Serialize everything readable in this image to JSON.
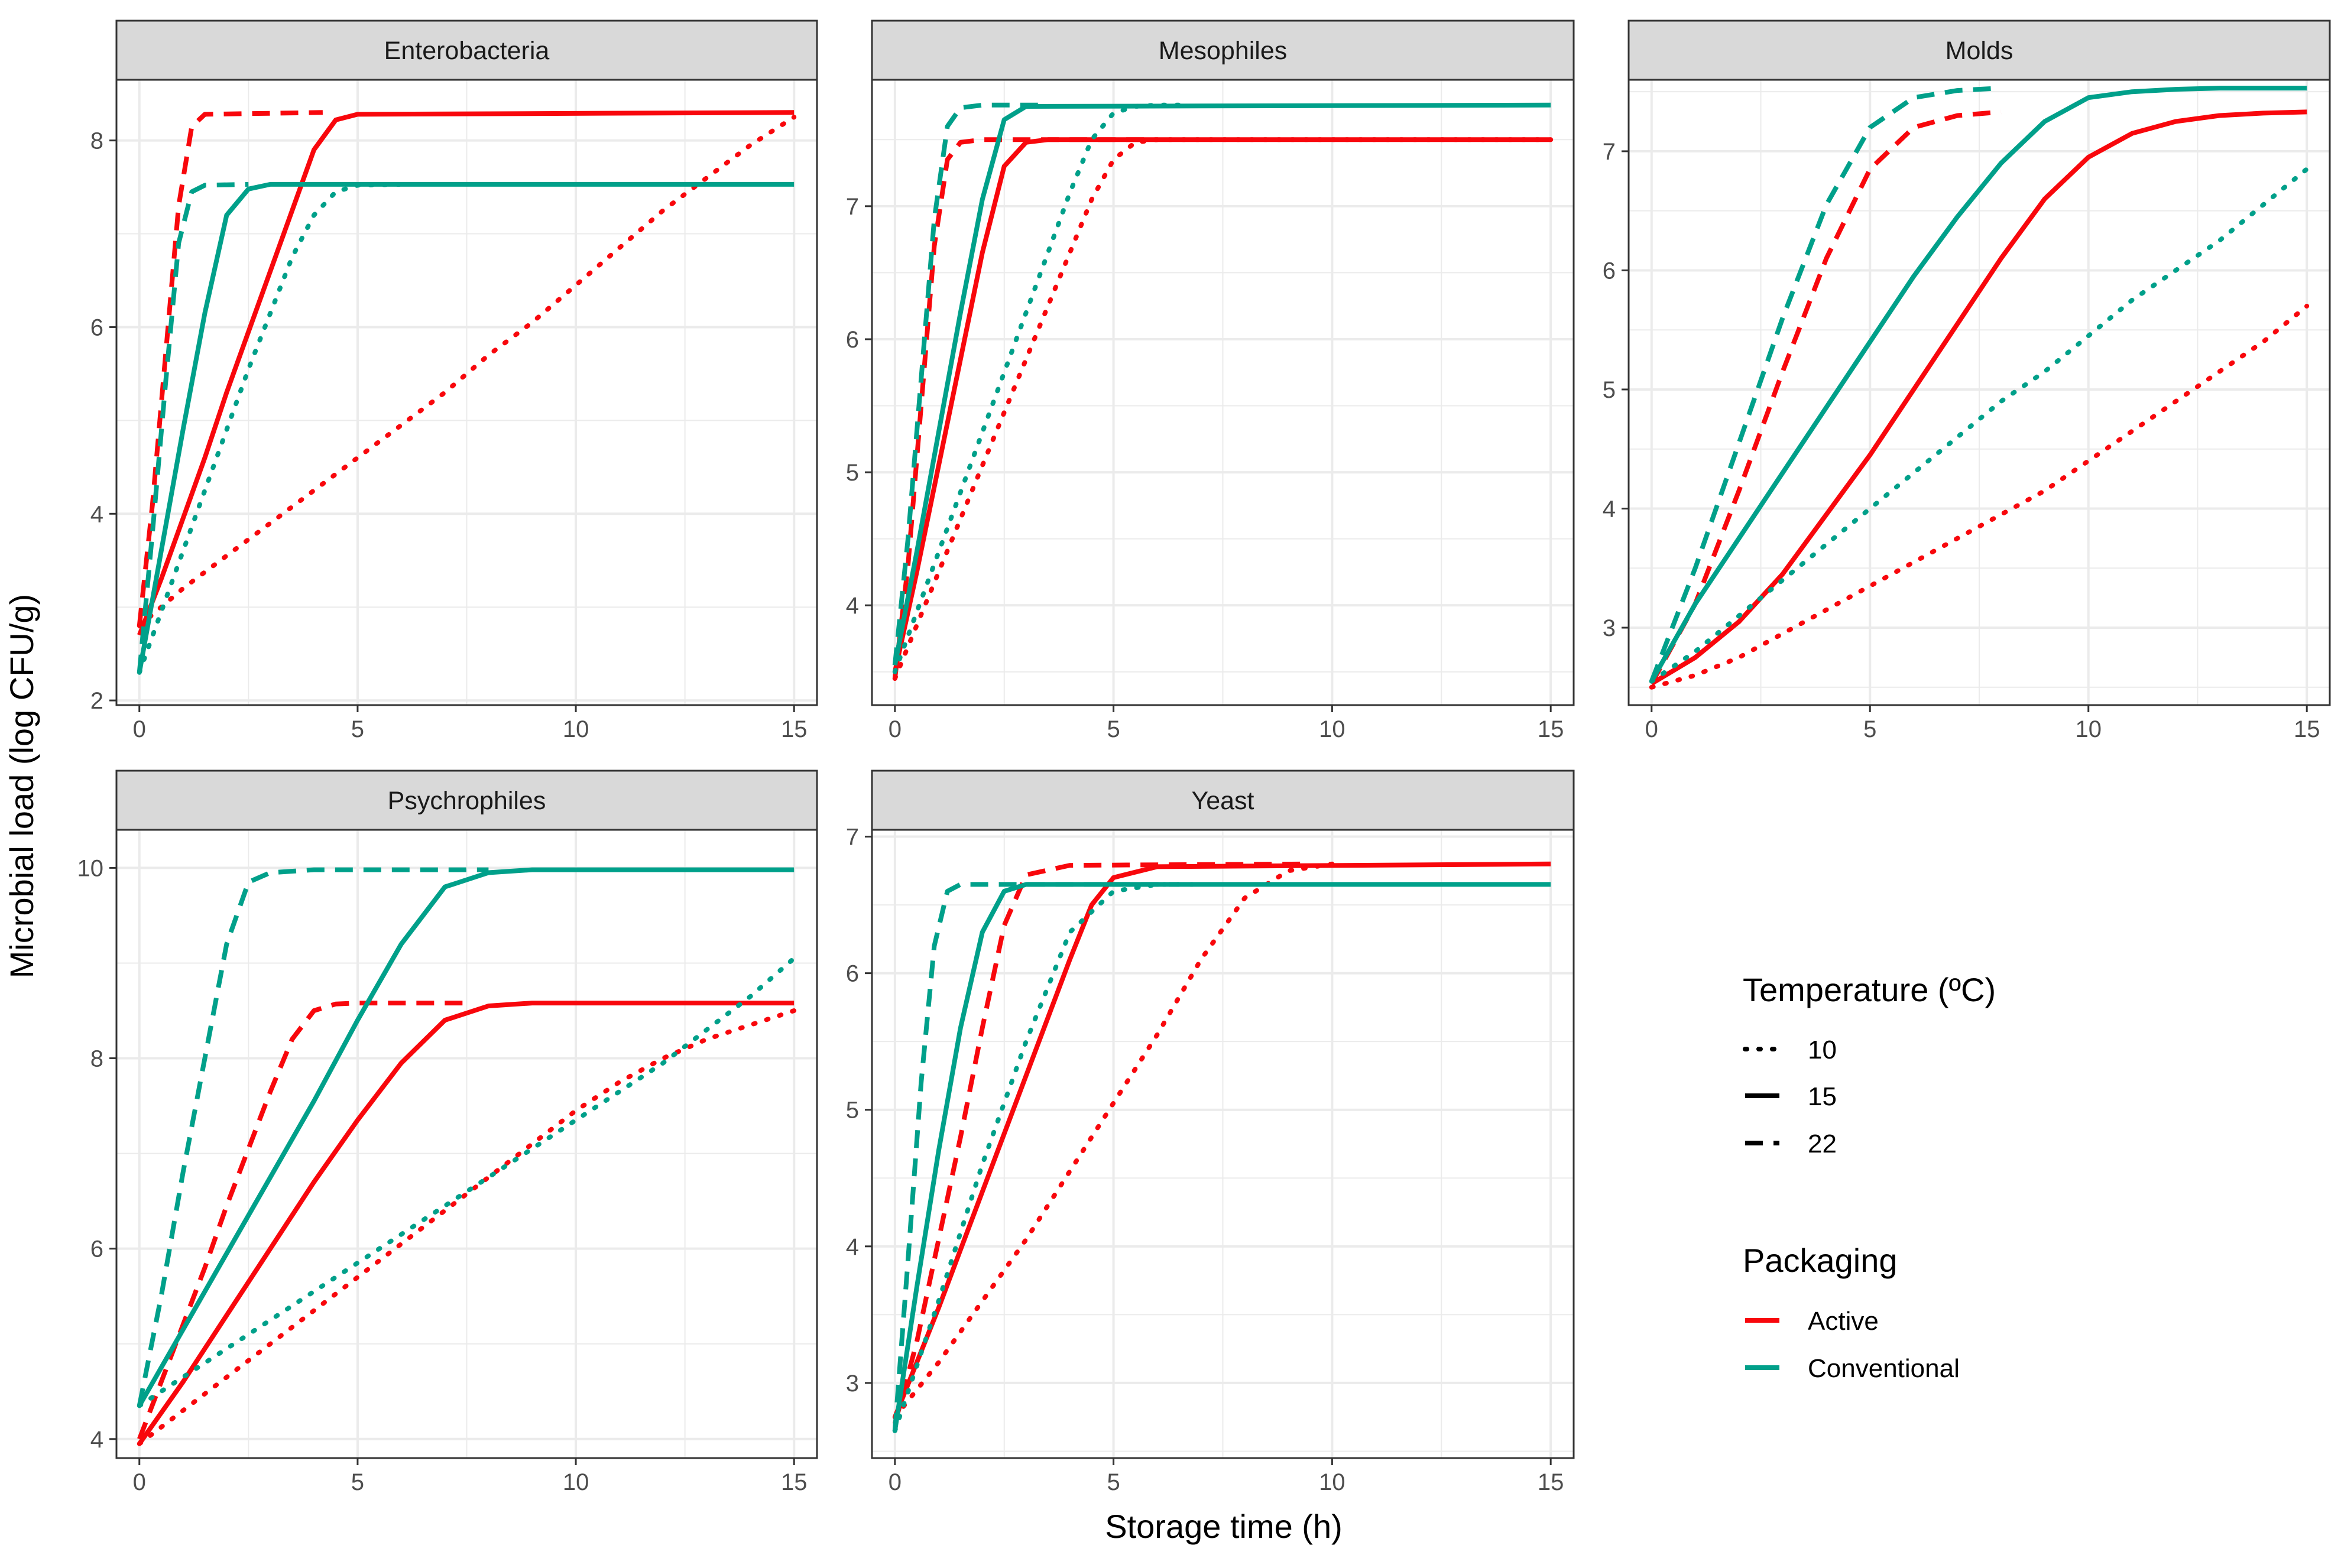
{
  "chart_data": {
    "type": "line",
    "xlabel": "Storage time (h)",
    "ylabel": "Microbial load (log CFU/g)",
    "xlim": [
      0,
      15
    ],
    "x_ticks": [
      "0",
      "5",
      "10",
      "15"
    ],
    "legend": {
      "placement": "right",
      "temperature": {
        "title": "Temperature (ºC)",
        "entries": [
          {
            "label": "10",
            "linetype": "dotted"
          },
          {
            "label": "15",
            "linetype": "solid"
          },
          {
            "label": "22",
            "linetype": "dashed"
          }
        ]
      },
      "packaging": {
        "title": "Packaging",
        "entries": [
          {
            "label": "Active",
            "color": "#F8070C"
          },
          {
            "label": "Conventional",
            "color": "#00A08A"
          }
        ]
      }
    },
    "panels": [
      {
        "title": "Enterobacteria",
        "ylim": [
          1.95,
          8.65
        ],
        "y_ticks": [
          "2",
          "4",
          "6",
          "8"
        ],
        "series": [
          {
            "packaging": "Active",
            "temperature": "10",
            "x": [
              0,
              1,
              2,
              3,
              4,
              5,
              6,
              7,
              8,
              9,
              10,
              11,
              12,
              13,
              14,
              15
            ],
            "y": [
              2.8,
              3.2,
              3.55,
              3.9,
              4.25,
              4.6,
              4.95,
              5.3,
              5.7,
              6.05,
              6.45,
              6.85,
              7.25,
              7.6,
              7.95,
              8.25
            ]
          },
          {
            "packaging": "Active",
            "temperature": "15",
            "x": [
              0,
              0.5,
              1,
              1.5,
              2,
              2.5,
              3,
              3.5,
              4,
              4.5,
              5,
              15
            ],
            "y": [
              2.7,
              3.3,
              3.95,
              4.6,
              5.3,
              5.95,
              6.6,
              7.25,
              7.9,
              8.22,
              8.28,
              8.3
            ]
          },
          {
            "packaging": "Active",
            "temperature": "22",
            "x": [
              0,
              0.3,
              0.6,
              0.9,
              1.2,
              1.5,
              4.2
            ],
            "y": [
              2.8,
              4.1,
              5.7,
              7.3,
              8.15,
              8.28,
              8.3
            ]
          },
          {
            "packaging": "Conventional",
            "temperature": "10",
            "x": [
              0,
              0.5,
              1,
              1.5,
              2,
              2.5,
              3,
              3.5,
              4,
              4.5,
              5,
              6
            ],
            "y": [
              2.3,
              2.95,
              3.6,
              4.25,
              4.9,
              5.55,
              6.15,
              6.75,
              7.2,
              7.45,
              7.52,
              7.53
            ]
          },
          {
            "packaging": "Conventional",
            "temperature": "15",
            "x": [
              0,
              0.5,
              1,
              1.5,
              2,
              2.5,
              3,
              15
            ],
            "y": [
              2.3,
              3.6,
              4.9,
              6.15,
              7.2,
              7.48,
              7.53,
              7.53
            ]
          },
          {
            "packaging": "Conventional",
            "temperature": "22",
            "x": [
              0,
              0.3,
              0.6,
              0.9,
              1.2,
              1.5,
              2.5
            ],
            "y": [
              2.3,
              3.8,
              5.4,
              6.9,
              7.45,
              7.52,
              7.53
            ]
          }
        ]
      },
      {
        "title": "Mesophiles",
        "ylim": [
          3.25,
          7.95
        ],
        "y_ticks": [
          "4",
          "5",
          "6",
          "7"
        ],
        "series": [
          {
            "packaging": "Active",
            "temperature": "10",
            "x": [
              0,
              0.5,
              1,
              1.5,
              2,
              2.5,
              3,
              3.5,
              4,
              4.5,
              5,
              5.5,
              6,
              15
            ],
            "y": [
              3.45,
              3.85,
              4.25,
              4.65,
              5.05,
              5.45,
              5.85,
              6.25,
              6.65,
              7.05,
              7.35,
              7.48,
              7.5,
              7.5
            ]
          },
          {
            "packaging": "Active",
            "temperature": "15",
            "x": [
              0,
              0.5,
              1,
              1.5,
              2,
              2.5,
              3,
              3.5,
              15
            ],
            "y": [
              3.5,
              4.25,
              5.05,
              5.85,
              6.65,
              7.3,
              7.48,
              7.5,
              7.5
            ]
          },
          {
            "packaging": "Active",
            "temperature": "22",
            "x": [
              0,
              0.3,
              0.6,
              0.9,
              1.2,
              1.5,
              2,
              6
            ],
            "y": [
              3.45,
              4.3,
              5.5,
              6.7,
              7.35,
              7.48,
              7.5,
              7.5
            ]
          },
          {
            "packaging": "Conventional",
            "temperature": "10",
            "x": [
              0,
              0.5,
              1,
              1.5,
              2,
              2.5,
              3,
              3.5,
              4,
              4.5,
              5,
              5.5,
              6,
              6.5
            ],
            "y": [
              3.5,
              3.95,
              4.4,
              4.85,
              5.3,
              5.75,
              6.2,
              6.65,
              7.1,
              7.5,
              7.7,
              7.75,
              7.76,
              7.76
            ]
          },
          {
            "packaging": "Conventional",
            "temperature": "15",
            "x": [
              0,
              0.5,
              1,
              1.5,
              2,
              2.5,
              3,
              15
            ],
            "y": [
              3.55,
              4.4,
              5.3,
              6.2,
              7.05,
              7.65,
              7.75,
              7.76
            ]
          },
          {
            "packaging": "Conventional",
            "temperature": "22",
            "x": [
              0,
              0.3,
              0.6,
              0.9,
              1.2,
              1.5,
              2,
              3.5
            ],
            "y": [
              3.55,
              4.5,
              5.7,
              6.9,
              7.6,
              7.74,
              7.76,
              7.76
            ]
          }
        ]
      },
      {
        "title": "Molds",
        "ylim": [
          2.35,
          7.6
        ],
        "y_ticks": [
          "3",
          "4",
          "5",
          "6",
          "7"
        ],
        "series": [
          {
            "packaging": "Active",
            "temperature": "10",
            "x": [
              0,
              1,
              2,
              3,
              4,
              5,
              6,
              7,
              8,
              9,
              10,
              11,
              12,
              13,
              14,
              15
            ],
            "y": [
              2.5,
              2.6,
              2.75,
              2.95,
              3.15,
              3.35,
              3.55,
              3.75,
              3.95,
              4.15,
              4.4,
              4.65,
              4.9,
              5.15,
              5.4,
              5.7
            ]
          },
          {
            "packaging": "Active",
            "temperature": "15",
            "x": [
              0,
              1,
              2,
              3,
              4,
              5,
              6,
              7,
              8,
              9,
              10,
              11,
              12,
              13,
              14,
              15
            ],
            "y": [
              2.53,
              2.75,
              3.05,
              3.45,
              3.95,
              4.45,
              5.0,
              5.55,
              6.1,
              6.6,
              6.95,
              7.15,
              7.25,
              7.3,
              7.32,
              7.33
            ]
          },
          {
            "packaging": "Active",
            "temperature": "22",
            "x": [
              0,
              1,
              2,
              3,
              4,
              5,
              6,
              7,
              8
            ],
            "y": [
              2.53,
              3.2,
              4.15,
              5.15,
              6.1,
              6.85,
              7.2,
              7.3,
              7.33
            ]
          },
          {
            "packaging": "Conventional",
            "temperature": "10",
            "x": [
              0,
              1,
              2,
              3,
              4,
              5,
              6,
              7,
              8,
              9,
              10,
              11,
              12,
              13,
              14,
              15
            ],
            "y": [
              2.55,
              2.8,
              3.1,
              3.4,
              3.7,
              4.0,
              4.3,
              4.6,
              4.9,
              5.15,
              5.45,
              5.75,
              6.0,
              6.25,
              6.55,
              6.85
            ]
          },
          {
            "packaging": "Conventional",
            "temperature": "15",
            "x": [
              0,
              1,
              2,
              3,
              4,
              5,
              6,
              7,
              8,
              9,
              10,
              11,
              12,
              13,
              14,
              15
            ],
            "y": [
              2.55,
              3.2,
              3.75,
              4.3,
              4.85,
              5.4,
              5.95,
              6.45,
              6.9,
              7.25,
              7.45,
              7.5,
              7.52,
              7.53,
              7.53,
              7.53
            ]
          },
          {
            "packaging": "Conventional",
            "temperature": "22",
            "x": [
              0,
              1,
              2,
              3,
              4,
              5,
              6,
              7,
              8
            ],
            "y": [
              2.55,
              3.5,
              4.55,
              5.6,
              6.55,
              7.2,
              7.45,
              7.51,
              7.53
            ]
          }
        ]
      },
      {
        "title": "Psychrophiles",
        "ylim": [
          3.8,
          10.4
        ],
        "y_ticks": [
          "4",
          "6",
          "8",
          "10"
        ],
        "series": [
          {
            "packaging": "Active",
            "temperature": "10",
            "x": [
              0,
              1,
              2,
              3,
              4,
              5,
              6,
              7,
              8,
              9,
              10,
              11,
              12,
              13,
              14,
              15
            ],
            "y": [
              3.95,
              4.3,
              4.65,
              5.0,
              5.35,
              5.7,
              6.05,
              6.4,
              6.75,
              7.1,
              7.45,
              7.75,
              8.0,
              8.2,
              8.35,
              8.5
            ]
          },
          {
            "packaging": "Active",
            "temperature": "15",
            "x": [
              0,
              1,
              2,
              3,
              4,
              5,
              6,
              7,
              8,
              9,
              15
            ],
            "y": [
              3.95,
              4.6,
              5.3,
              6.0,
              6.7,
              7.35,
              7.95,
              8.4,
              8.55,
              8.58,
              8.58
            ]
          },
          {
            "packaging": "Active",
            "temperature": "22",
            "x": [
              0,
              0.5,
              1,
              1.5,
              2,
              2.5,
              3,
              3.5,
              4,
              4.5,
              5,
              7.5
            ],
            "y": [
              4.0,
              4.6,
              5.2,
              5.8,
              6.45,
              7.05,
              7.65,
              8.2,
              8.5,
              8.57,
              8.58,
              8.58
            ]
          },
          {
            "packaging": "Conventional",
            "temperature": "10",
            "x": [
              0,
              1,
              2,
              3,
              4,
              5,
              6,
              7,
              8,
              9,
              10,
              11,
              12,
              13,
              14,
              15
            ],
            "y": [
              4.35,
              4.65,
              4.95,
              5.25,
              5.55,
              5.85,
              6.15,
              6.45,
              6.75,
              7.05,
              7.35,
              7.65,
              7.95,
              8.3,
              8.65,
              9.05
            ]
          },
          {
            "packaging": "Conventional",
            "temperature": "15",
            "x": [
              0,
              1,
              2,
              3,
              4,
              5,
              6,
              7,
              8,
              9,
              15
            ],
            "y": [
              4.35,
              5.15,
              5.95,
              6.75,
              7.55,
              8.4,
              9.2,
              9.8,
              9.95,
              9.98,
              9.98
            ]
          },
          {
            "packaging": "Conventional",
            "temperature": "22",
            "x": [
              0,
              0.5,
              1,
              1.5,
              2,
              2.5,
              3,
              4,
              8
            ],
            "y": [
              4.35,
              5.5,
              6.8,
              8.0,
              9.2,
              9.85,
              9.95,
              9.98,
              9.98
            ]
          }
        ]
      },
      {
        "title": "Yeast",
        "ylim": [
          2.45,
          7.05
        ],
        "y_ticks": [
          "3",
          "4",
          "5",
          "6",
          "7"
        ],
        "series": [
          {
            "packaging": "Active",
            "temperature": "10",
            "x": [
              0,
              1,
              2,
              3,
              4,
              5,
              6,
              7,
              8,
              9,
              10
            ],
            "y": [
              2.75,
              3.15,
              3.6,
              4.05,
              4.55,
              5.05,
              5.55,
              6.1,
              6.55,
              6.75,
              6.8
            ]
          },
          {
            "packaging": "Active",
            "temperature": "15",
            "x": [
              0,
              1,
              2,
              3,
              4,
              4.5,
              5,
              6,
              15
            ],
            "y": [
              2.75,
              3.55,
              4.4,
              5.25,
              6.1,
              6.5,
              6.7,
              6.78,
              6.8
            ]
          },
          {
            "packaging": "Active",
            "temperature": "22",
            "x": [
              0,
              0.5,
              1,
              1.5,
              2,
              2.5,
              3,
              4,
              9.5
            ],
            "y": [
              2.7,
              3.3,
              4.05,
              4.8,
              5.6,
              6.35,
              6.72,
              6.79,
              6.8
            ]
          },
          {
            "packaging": "Conventional",
            "temperature": "10",
            "x": [
              0,
              1,
              2,
              3,
              4,
              5,
              6,
              7
            ],
            "y": [
              2.65,
              3.6,
              4.6,
              5.5,
              6.3,
              6.6,
              6.65,
              6.65
            ]
          },
          {
            "packaging": "Conventional",
            "temperature": "15",
            "x": [
              0,
              0.5,
              1,
              1.5,
              2,
              2.5,
              3,
              15
            ],
            "y": [
              2.65,
              3.7,
              4.7,
              5.6,
              6.3,
              6.6,
              6.65,
              6.65
            ]
          },
          {
            "packaging": "Conventional",
            "temperature": "22",
            "x": [
              0,
              0.3,
              0.6,
              0.9,
              1.2,
              1.5,
              2,
              6.5
            ],
            "y": [
              2.65,
              3.9,
              5.2,
              6.2,
              6.6,
              6.65,
              6.65,
              6.65
            ]
          }
        ]
      }
    ]
  }
}
